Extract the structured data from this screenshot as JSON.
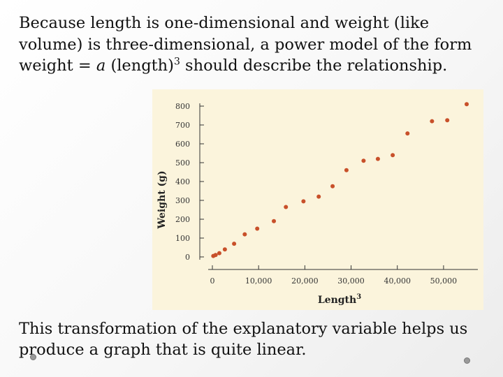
{
  "text": {
    "intro_part1": "Because length is one-dimensional and weight (like volume) is three-dimensional, a power model of the form weight = ",
    "intro_var": "a",
    "intro_part2": " (length)",
    "intro_exp": "3",
    "intro_part3": " should describe the relationship.",
    "outro": "This transformation of the explanatory variable helps us produce a graph that is quite linear."
  },
  "chart_data": {
    "type": "scatter",
    "xlabel": "Length",
    "xlabel_sup": "3",
    "ylabel": "Weight (g)",
    "xlim": [
      0,
      55000
    ],
    "ylim": [
      0,
      800
    ],
    "xticks": [
      0,
      10000,
      20000,
      30000,
      40000,
      50000
    ],
    "xtick_labels": [
      "0",
      "10,000",
      "20,000",
      "30,000",
      "40,000",
      "50,000"
    ],
    "yticks": [
      0,
      100,
      200,
      300,
      400,
      500,
      600,
      700,
      800
    ],
    "ytick_labels": [
      "0",
      "100",
      "200",
      "300",
      "400",
      "500",
      "600",
      "700",
      "800"
    ],
    "plot_background": "#fbf4dc",
    "point_color": "#c8502a",
    "points": [
      [
        200,
        5
      ],
      [
        700,
        10
      ],
      [
        1500,
        20
      ],
      [
        2700,
        40
      ],
      [
        4700,
        70
      ],
      [
        7000,
        120
      ],
      [
        9700,
        150
      ],
      [
        13300,
        190
      ],
      [
        15900,
        265
      ],
      [
        19700,
        295
      ],
      [
        23000,
        320
      ],
      [
        26000,
        375
      ],
      [
        29000,
        460
      ],
      [
        32700,
        510
      ],
      [
        35800,
        520
      ],
      [
        39000,
        540
      ],
      [
        42200,
        655
      ],
      [
        47500,
        720
      ],
      [
        50800,
        725
      ],
      [
        55000,
        810
      ]
    ]
  }
}
